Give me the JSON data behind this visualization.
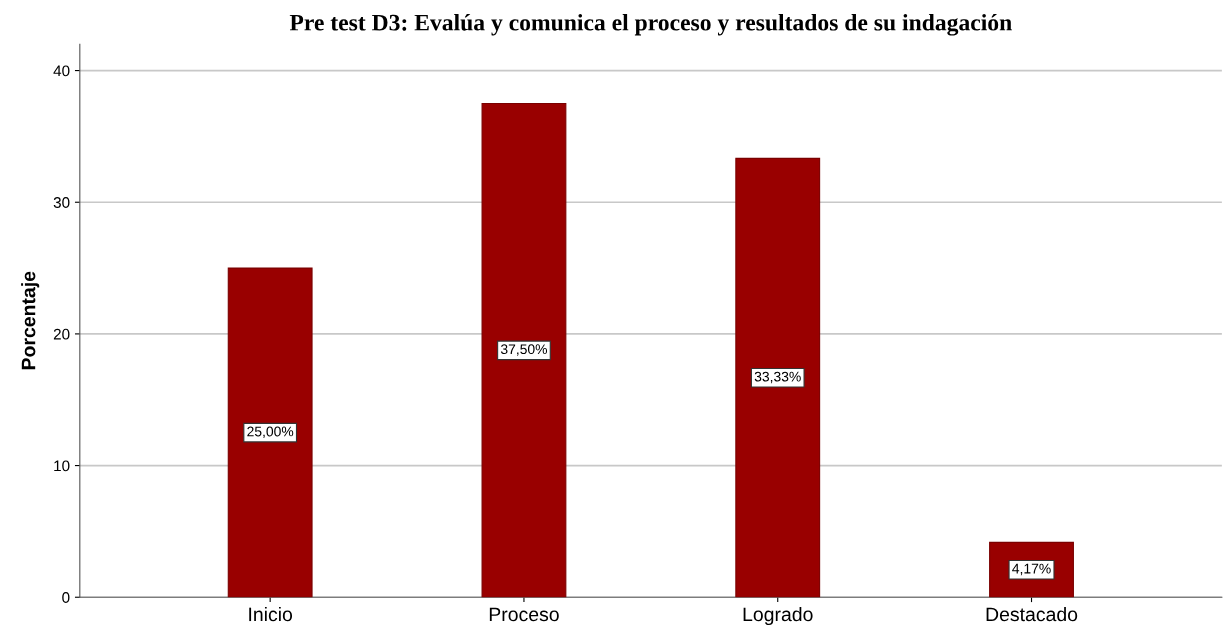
{
  "chart_data": {
    "type": "bar",
    "title": "Pre test D3: Evalúa y comunica el proceso y resultados de su indagación",
    "ylabel": "Porcentaje",
    "categories": [
      "Inicio",
      "Proceso",
      "Logrado",
      "Destacado"
    ],
    "values": [
      25.0,
      37.5,
      33.33,
      4.17
    ],
    "value_labels": [
      "25,00%",
      "37,50%",
      "33,33%",
      "4,17%"
    ],
    "color": "#990000",
    "ylim": [
      0,
      42
    ],
    "yticks": [
      0,
      10,
      20,
      30,
      40
    ],
    "grid": "y"
  }
}
